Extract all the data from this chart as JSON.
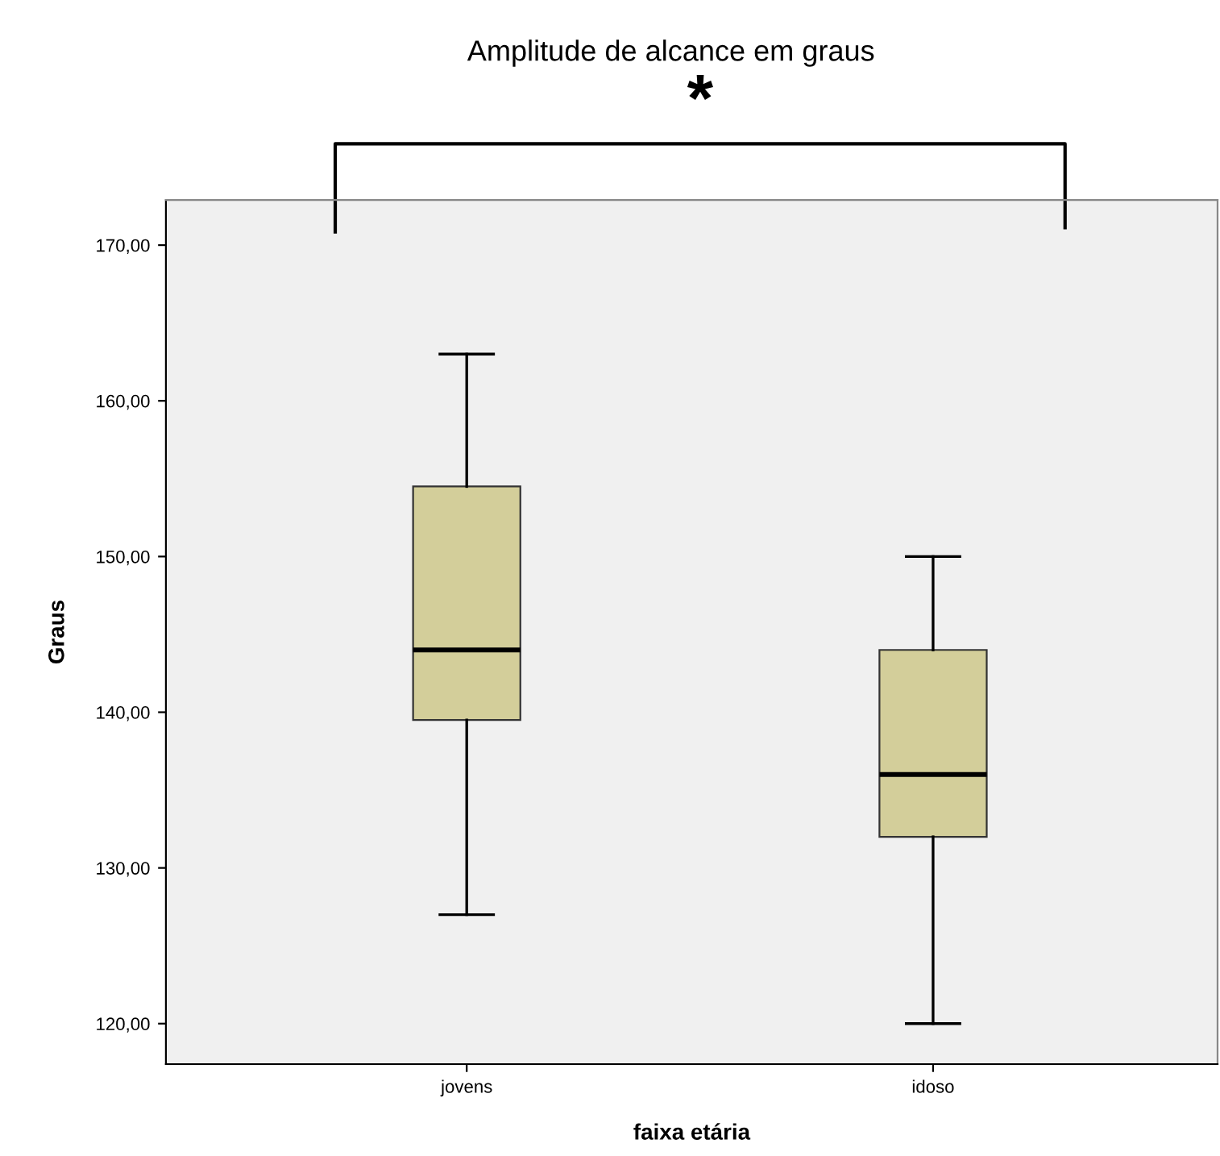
{
  "chart_data": {
    "type": "box",
    "title": "Amplitude de alcance em graus",
    "xlabel": "faixa etária",
    "ylabel": "Graus",
    "categories": [
      "jovens",
      "idoso"
    ],
    "boxes": [
      {
        "low": 127,
        "q1": 139.5,
        "median": 144,
        "q3": 154.5,
        "high": 163
      },
      {
        "low": 120,
        "q1": 132,
        "median": 136,
        "q3": 144,
        "high": 150
      }
    ],
    "color": "#d3ce9a",
    "ylim": [
      117.4,
      172.9
    ],
    "yticks": [
      {
        "value": 120,
        "label": "120,00"
      },
      {
        "value": 130,
        "label": "130,00"
      },
      {
        "value": 140,
        "label": "140,00"
      },
      {
        "value": 150,
        "label": "150,00"
      },
      {
        "value": 160,
        "label": "160,00"
      },
      {
        "value": 170,
        "label": "170,00"
      }
    ],
    "annotations": [
      "*"
    ],
    "grid": false
  }
}
